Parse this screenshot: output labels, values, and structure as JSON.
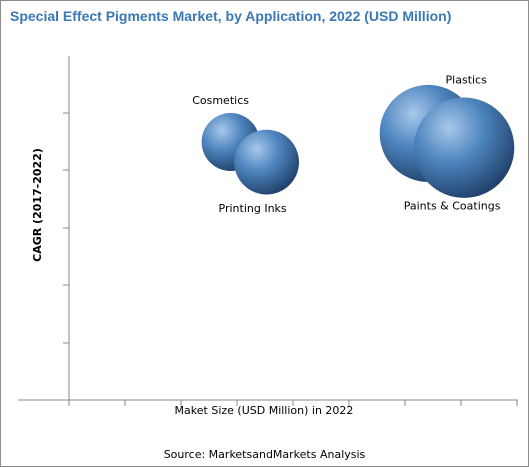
{
  "chart_data": {
    "type": "bubble",
    "title": "Special Effect Pigments Market, by Application, 2022 (USD Million)",
    "xlabel": "Maket Size (USD Million) in 2022",
    "ylabel": "CAGR (2017-2022)",
    "source": "Source: MarketsandMarkets Analysis",
    "grid": false,
    "legend": "none",
    "axis_ticks_labeled": false,
    "colors": {
      "bubble_light": "#a9c8ea",
      "bubble_mid": "#4f86c0",
      "bubble_dark": "#1e3f68",
      "title": "#3a78b5",
      "axis": "#8a8a8a"
    },
    "series": [
      {
        "name": "Cosmetics",
        "x": 1.8,
        "y": 4.5,
        "size": 1.0
      },
      {
        "name": "Printing Inks",
        "x": 2.2,
        "y": 4.15,
        "size": 1.25
      },
      {
        "name": "Plastics",
        "x": 4.0,
        "y": 4.65,
        "size": 2.8
      },
      {
        "name": "Paints & Coatings",
        "x": 4.4,
        "y": 4.4,
        "size": 3.0
      }
    ],
    "xlim": [
      0,
      5
    ],
    "ylim": [
      0,
      6
    ]
  }
}
